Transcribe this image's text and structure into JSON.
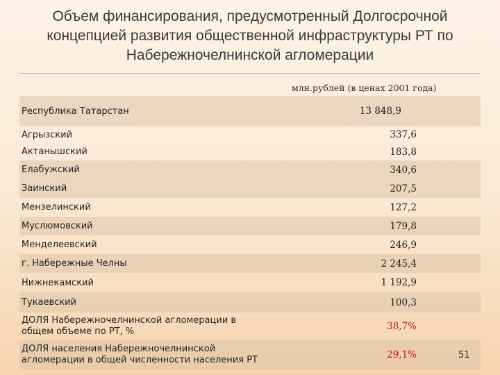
{
  "title_lines": [
    "Объем финансирования, предусмотренный Долгосрочной",
    "концепцией развития общественной инфраструктуры РТ по",
    "Набережночелнинской агломерации"
  ],
  "unit_label": "млн.рублей (в ценах 2001 года)",
  "rows": [
    {
      "name": "Республика Татарстан",
      "value": "13 848,9"
    },
    {
      "name": "Агрызский",
      "value": "337,6"
    },
    {
      "name": "Актанышский",
      "value": "183,8"
    },
    {
      "name": "Елабужский",
      "value": "340,6"
    },
    {
      "name": "Заинский",
      "value": "207,5"
    },
    {
      "name": "Мензелинский",
      "value": "127,2"
    },
    {
      "name": "Муслюмовский",
      "value": "179,8"
    },
    {
      "name": "Менделеевский",
      "value": "246,9"
    },
    {
      "name": "г. Набережные Челны",
      "value": "2 245,4"
    },
    {
      "name": "Нижнекамский",
      "value": "1 192,9"
    },
    {
      "name": "Тукаевский",
      "value": "100,3"
    },
    {
      "name": "ДОЛЯ Набережночелнинской агломерации в общем объеме по РТ, %",
      "value": "38,7%"
    },
    {
      "name": "ДОЛЯ населения Набережночелнинской агломерации в общей численности населения РТ",
      "value": "29,1%"
    }
  ],
  "page_number": "51",
  "colors": {
    "highlight_value": "#c0161b",
    "row_shade": "#e8d3bd"
  }
}
